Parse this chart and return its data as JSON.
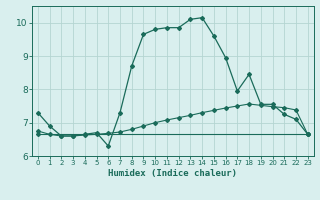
{
  "xlabel": "Humidex (Indice chaleur)",
  "background_color": "#d9efee",
  "grid_color": "#b5d5d2",
  "line_color": "#1a6b5a",
  "xlim": [
    -0.5,
    23.5
  ],
  "ylim": [
    6.0,
    10.5
  ],
  "yticks": [
    6,
    7,
    8,
    9,
    10
  ],
  "xticks": [
    0,
    1,
    2,
    3,
    4,
    5,
    6,
    7,
    8,
    9,
    10,
    11,
    12,
    13,
    14,
    15,
    16,
    17,
    18,
    19,
    20,
    21,
    22,
    23
  ],
  "series1_x": [
    0,
    1,
    2,
    3,
    4,
    5,
    6,
    7,
    8,
    9,
    10,
    11,
    12,
    13,
    14,
    15,
    16,
    17,
    18,
    19,
    20,
    21,
    22,
    23
  ],
  "series1_y": [
    7.3,
    6.9,
    6.6,
    6.6,
    6.65,
    6.7,
    6.3,
    7.3,
    8.7,
    9.65,
    9.8,
    9.85,
    9.85,
    10.1,
    10.15,
    9.6,
    8.95,
    7.95,
    8.45,
    7.55,
    7.55,
    7.25,
    7.1,
    6.65
  ],
  "series2_x": [
    0,
    1,
    2,
    3,
    4,
    5,
    6,
    7,
    8,
    9,
    10,
    11,
    12,
    13,
    14,
    15,
    16,
    17,
    18,
    19,
    20,
    21,
    22,
    23
  ],
  "series2_y": [
    6.75,
    6.65,
    6.6,
    6.6,
    6.63,
    6.65,
    6.68,
    6.72,
    6.8,
    6.9,
    7.0,
    7.08,
    7.15,
    7.22,
    7.3,
    7.37,
    7.44,
    7.5,
    7.56,
    7.52,
    7.48,
    7.45,
    7.38,
    6.65
  ],
  "series3_x": [
    0,
    23
  ],
  "series3_y": [
    6.65,
    6.65
  ]
}
